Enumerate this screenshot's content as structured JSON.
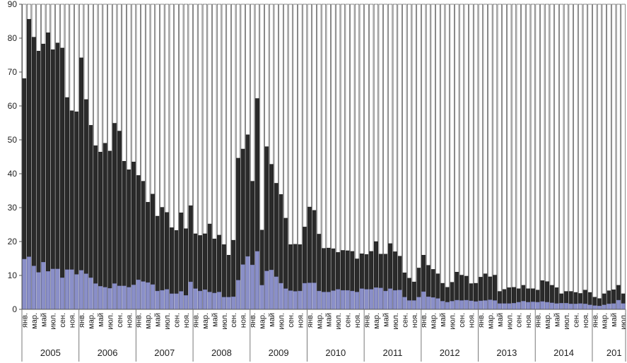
{
  "chart_data": {
    "type": "bar",
    "stacked": true,
    "ylim": [
      0,
      90
    ],
    "y_ticks": [
      0,
      10,
      20,
      30,
      40,
      50,
      60,
      70,
      80,
      90
    ],
    "grid": false,
    "legend": "none",
    "years": [
      "2005",
      "2006",
      "2007",
      "2008",
      "2009",
      "2010",
      "2011",
      "2012",
      "2013",
      "2014",
      "201"
    ],
    "month_labels": [
      "янв.",
      "мар.",
      "май",
      "июл.",
      "сен.",
      "ноя."
    ],
    "series": [
      {
        "color": "#8a8fc8",
        "values": [
          14.8,
          15.5,
          12.8,
          10.9,
          13.9,
          11.2,
          11.9,
          11.9,
          9.3,
          11.7,
          11.7,
          10.3,
          11.5,
          10.5,
          9.3,
          7.6,
          6.8,
          6.5,
          6.2,
          7.6,
          6.9,
          6.9,
          6.5,
          7.2,
          8.7,
          8.2,
          7.9,
          7.3,
          5.4,
          5.6,
          5.9,
          4.6,
          4.6,
          5.3,
          4.1,
          8.1,
          6.1,
          5.4,
          5.8,
          5.1,
          4.8,
          5.1,
          3.6,
          3.6,
          3.7,
          8.6,
          13.2,
          15.6,
          13.1,
          17.1,
          7.1,
          11.3,
          11.6,
          9.6,
          7.7,
          6.1,
          5.5,
          5.3,
          5.4,
          7.7,
          7.8,
          7.8,
          5.4,
          5.1,
          5.1,
          5.5,
          5.9,
          5.6,
          5.6,
          5.4,
          5.1,
          6.1,
          5.9,
          5.9,
          6.4,
          6.3,
          5.4,
          6.1,
          5.6,
          5.7,
          3.6,
          2.6,
          2.6,
          3.6,
          5.2,
          3.7,
          3.5,
          3.2,
          2.4,
          2.1,
          2.4,
          2.7,
          2.6,
          2.7,
          2.5,
          2.3,
          2.5,
          2.6,
          2.8,
          2.6,
          1.7,
          1.7,
          1.7,
          1.8,
          2.1,
          2.4,
          2.1,
          2.2,
          2.1,
          2.3,
          2.1,
          1.9,
          1.7,
          1.8,
          1.8,
          1.6,
          1.6,
          1.7,
          1.6,
          1.3,
          1.1,
          1.0,
          1.3,
          1.6,
          1.7,
          2.7,
          1.7
        ],
        "totals": [
          68.1,
          85.6,
          80.3,
          76.2,
          78.3,
          81.6,
          76.6,
          78.6,
          77.1,
          62.5,
          58.6,
          58.3,
          74.2,
          61.9,
          54.3,
          48.3,
          46.4,
          49.0,
          46.7,
          54.9,
          52.6,
          43.7,
          41.2,
          43.5,
          39.5,
          37.8,
          31.6,
          34.0,
          27.5,
          30.1,
          28.6,
          24.1,
          23.3,
          28.5,
          23.8,
          30.6,
          22.3,
          21.8,
          22.3,
          25.2,
          20.8,
          21.9,
          19.1,
          16.0,
          20.4,
          44.6,
          47.3,
          51.5,
          37.8,
          62.2,
          23.4,
          48.0,
          42.8,
          37.2,
          33.9,
          26.9,
          19.1,
          19.2,
          19.1,
          24.3,
          30.2,
          29.2,
          22.2,
          18.0,
          18.1,
          17.9,
          16.8,
          17.4,
          17.3,
          17.1,
          14.9,
          16.4,
          16.2,
          17.1,
          20.0,
          16.3,
          16.3,
          19.4,
          17.0,
          15.7,
          10.8,
          9.2,
          8.1,
          12.2,
          16.0,
          13.0,
          11.8,
          10.5,
          7.7,
          6.5,
          8.0,
          11.0,
          10.1,
          9.8,
          7.6,
          7.7,
          9.5,
          10.5,
          9.6,
          10.1,
          5.3,
          5.9,
          6.4,
          6.5,
          6.1,
          7.1,
          6.1,
          6.1,
          5.7,
          8.5,
          8.2,
          7.1,
          6.4,
          4.6,
          5.3,
          5.3,
          5.0,
          4.7,
          5.7,
          5.0,
          3.6,
          3.2,
          4.6,
          5.5,
          5.8,
          7.1,
          4.6
        ]
      },
      {
        "color": "#2a2a2a"
      }
    ]
  }
}
